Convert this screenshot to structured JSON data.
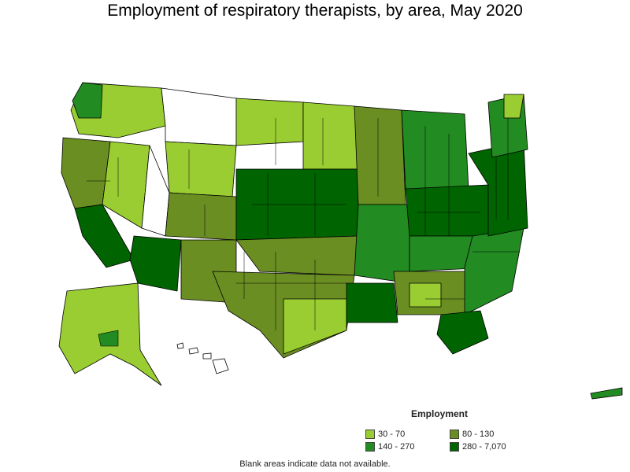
{
  "title": "Employment of respiratory therapists, by area, May 2020",
  "legend": {
    "title": "Employment",
    "items": [
      {
        "label": "30 - 70",
        "color": "#9acd32"
      },
      {
        "label": "80 - 130",
        "color": "#6b8e23"
      },
      {
        "label": "140 - 270",
        "color": "#228b22"
      },
      {
        "label": "280 - 7,070",
        "color": "#006400"
      }
    ]
  },
  "footnote": "Blank areas indicate data not available."
}
